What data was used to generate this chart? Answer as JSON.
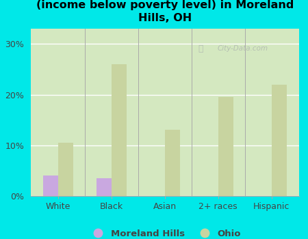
{
  "categories": [
    "White",
    "Black",
    "Asian",
    "2+ races",
    "Hispanic"
  ],
  "moreland_hills": [
    4.0,
    3.5,
    0,
    0,
    0
  ],
  "ohio": [
    10.5,
    26.0,
    13.0,
    19.5,
    22.0
  ],
  "moreland_color": "#c9a8e0",
  "ohio_color": "#c8d4a0",
  "title": "Breakdown of poor residents within races\n(income below poverty level) in Moreland\nHills, OH",
  "title_fontsize": 11.5,
  "ylim": [
    0,
    33
  ],
  "yticks": [
    0,
    10,
    20,
    30
  ],
  "ytick_labels": [
    "0%",
    "10%",
    "20%",
    "30%"
  ],
  "background_color": "#00e8e8",
  "plot_bg_left": "#d4e8c0",
  "plot_bg_right": "#f0f5eb",
  "watermark": "City-Data.com",
  "legend_moreland": "Moreland Hills",
  "legend_ohio": "Ohio",
  "bar_width": 0.28,
  "grid_color": "#e0e8d8",
  "axis_color": "#444444"
}
